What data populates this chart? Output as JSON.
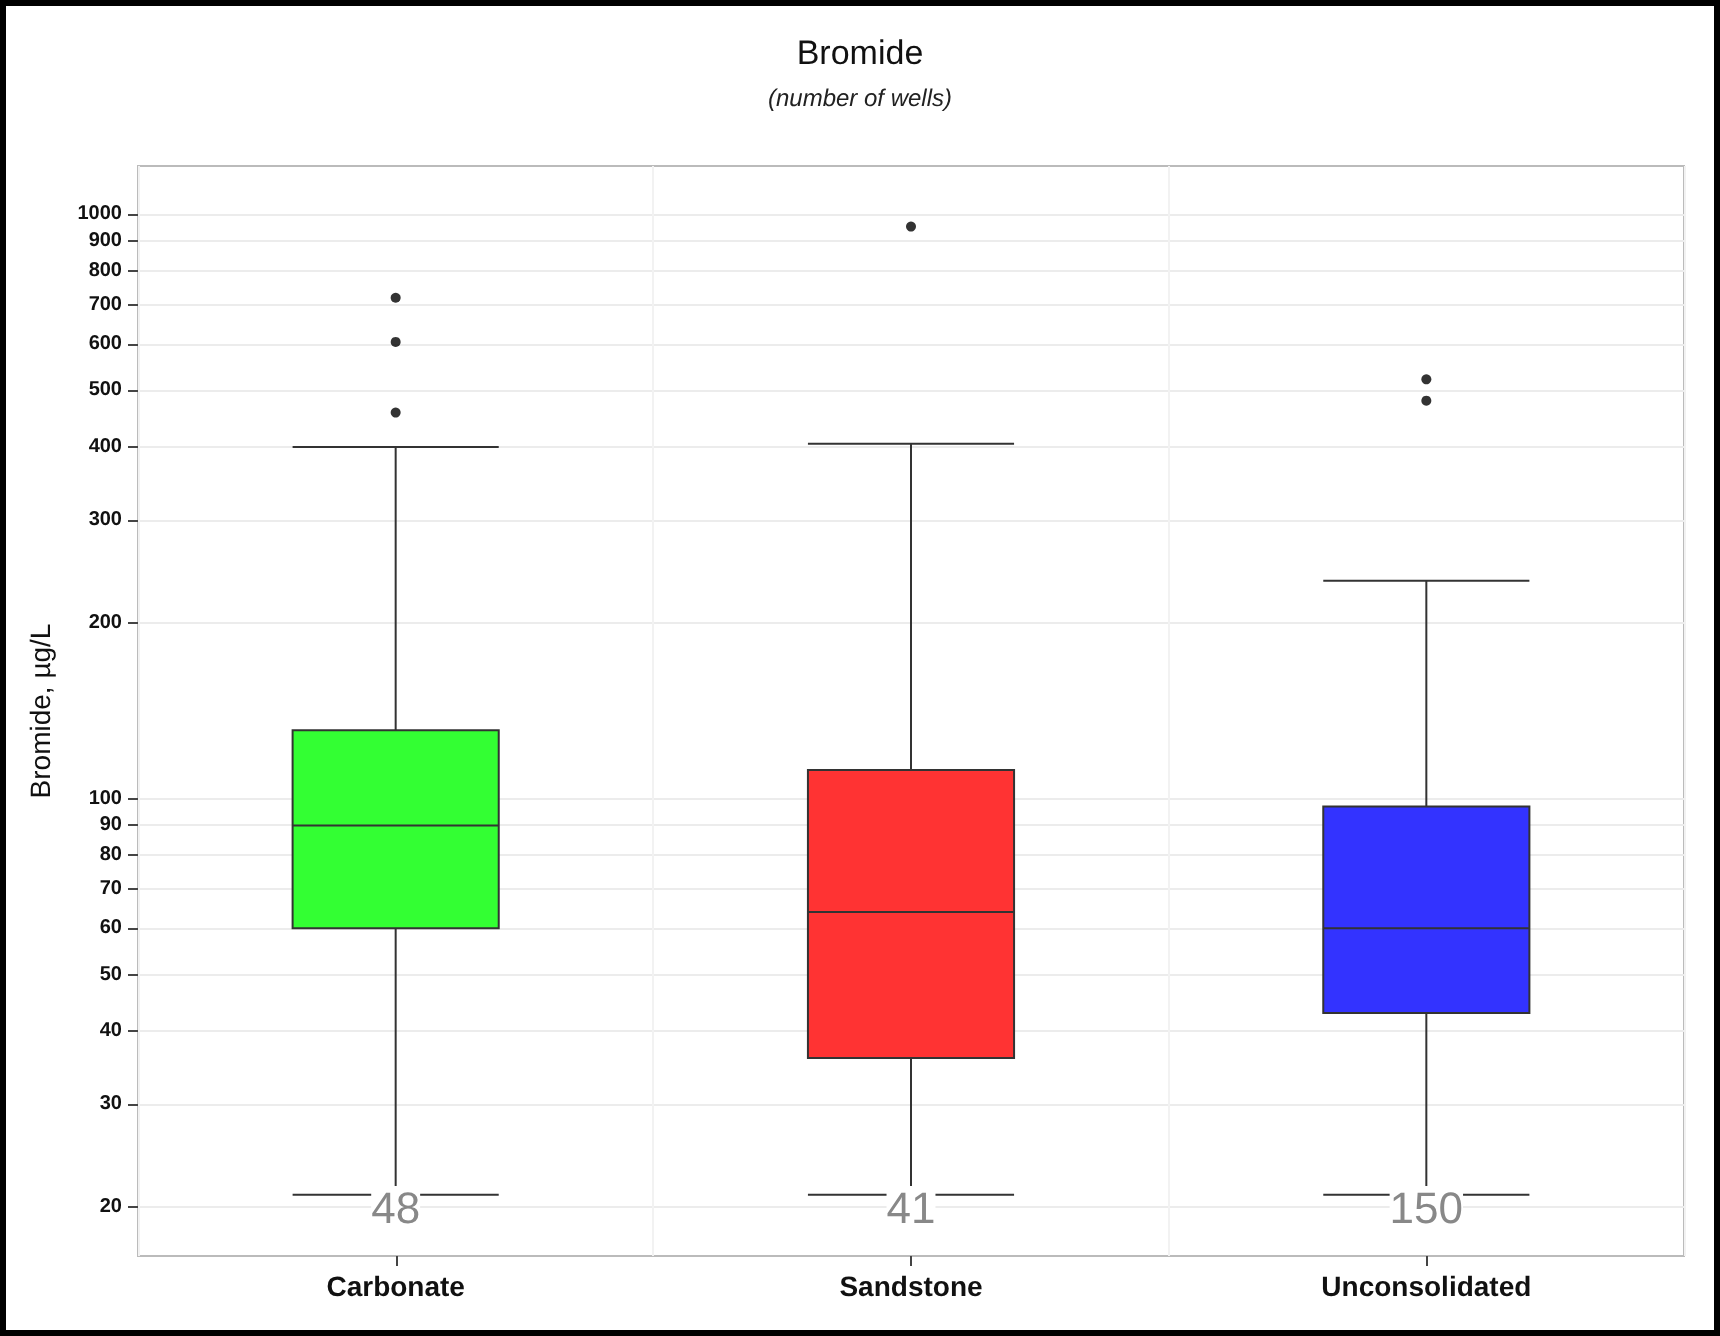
{
  "chart_data": {
    "type": "box",
    "title": "Bromide",
    "subtitle": "(number of wells)",
    "ylabel": "Bromide, µg/L",
    "categories": [
      "Carbonate",
      "Sandstone",
      "Unconsolidated"
    ],
    "series": [
      {
        "colors": [
          "#33ff33",
          "#ff3333",
          "#3333ff"
        ],
        "boxes": [
          {
            "low": 21,
            "q1": 60,
            "median": 90,
            "q3": 131,
            "high": 400,
            "outliers": [
              458,
              605,
              720
            ]
          },
          {
            "low": 21,
            "q1": 36,
            "median": 64,
            "q3": 112,
            "high": 405,
            "outliers": [
              953
            ]
          },
          {
            "low": 21,
            "q1": 43,
            "median": 60,
            "q3": 97,
            "high": 236,
            "outliers": [
              480,
              522
            ]
          }
        ]
      }
    ],
    "log": "y",
    "ylim": [
      16.5,
      1210
    ],
    "yticks": [
      20,
      30,
      40,
      50,
      60,
      70,
      80,
      90,
      100,
      200,
      300,
      400,
      500,
      600,
      700,
      800,
      900,
      1000
    ],
    "grid": true,
    "annotations": [
      "48",
      "41",
      "150"
    ]
  }
}
